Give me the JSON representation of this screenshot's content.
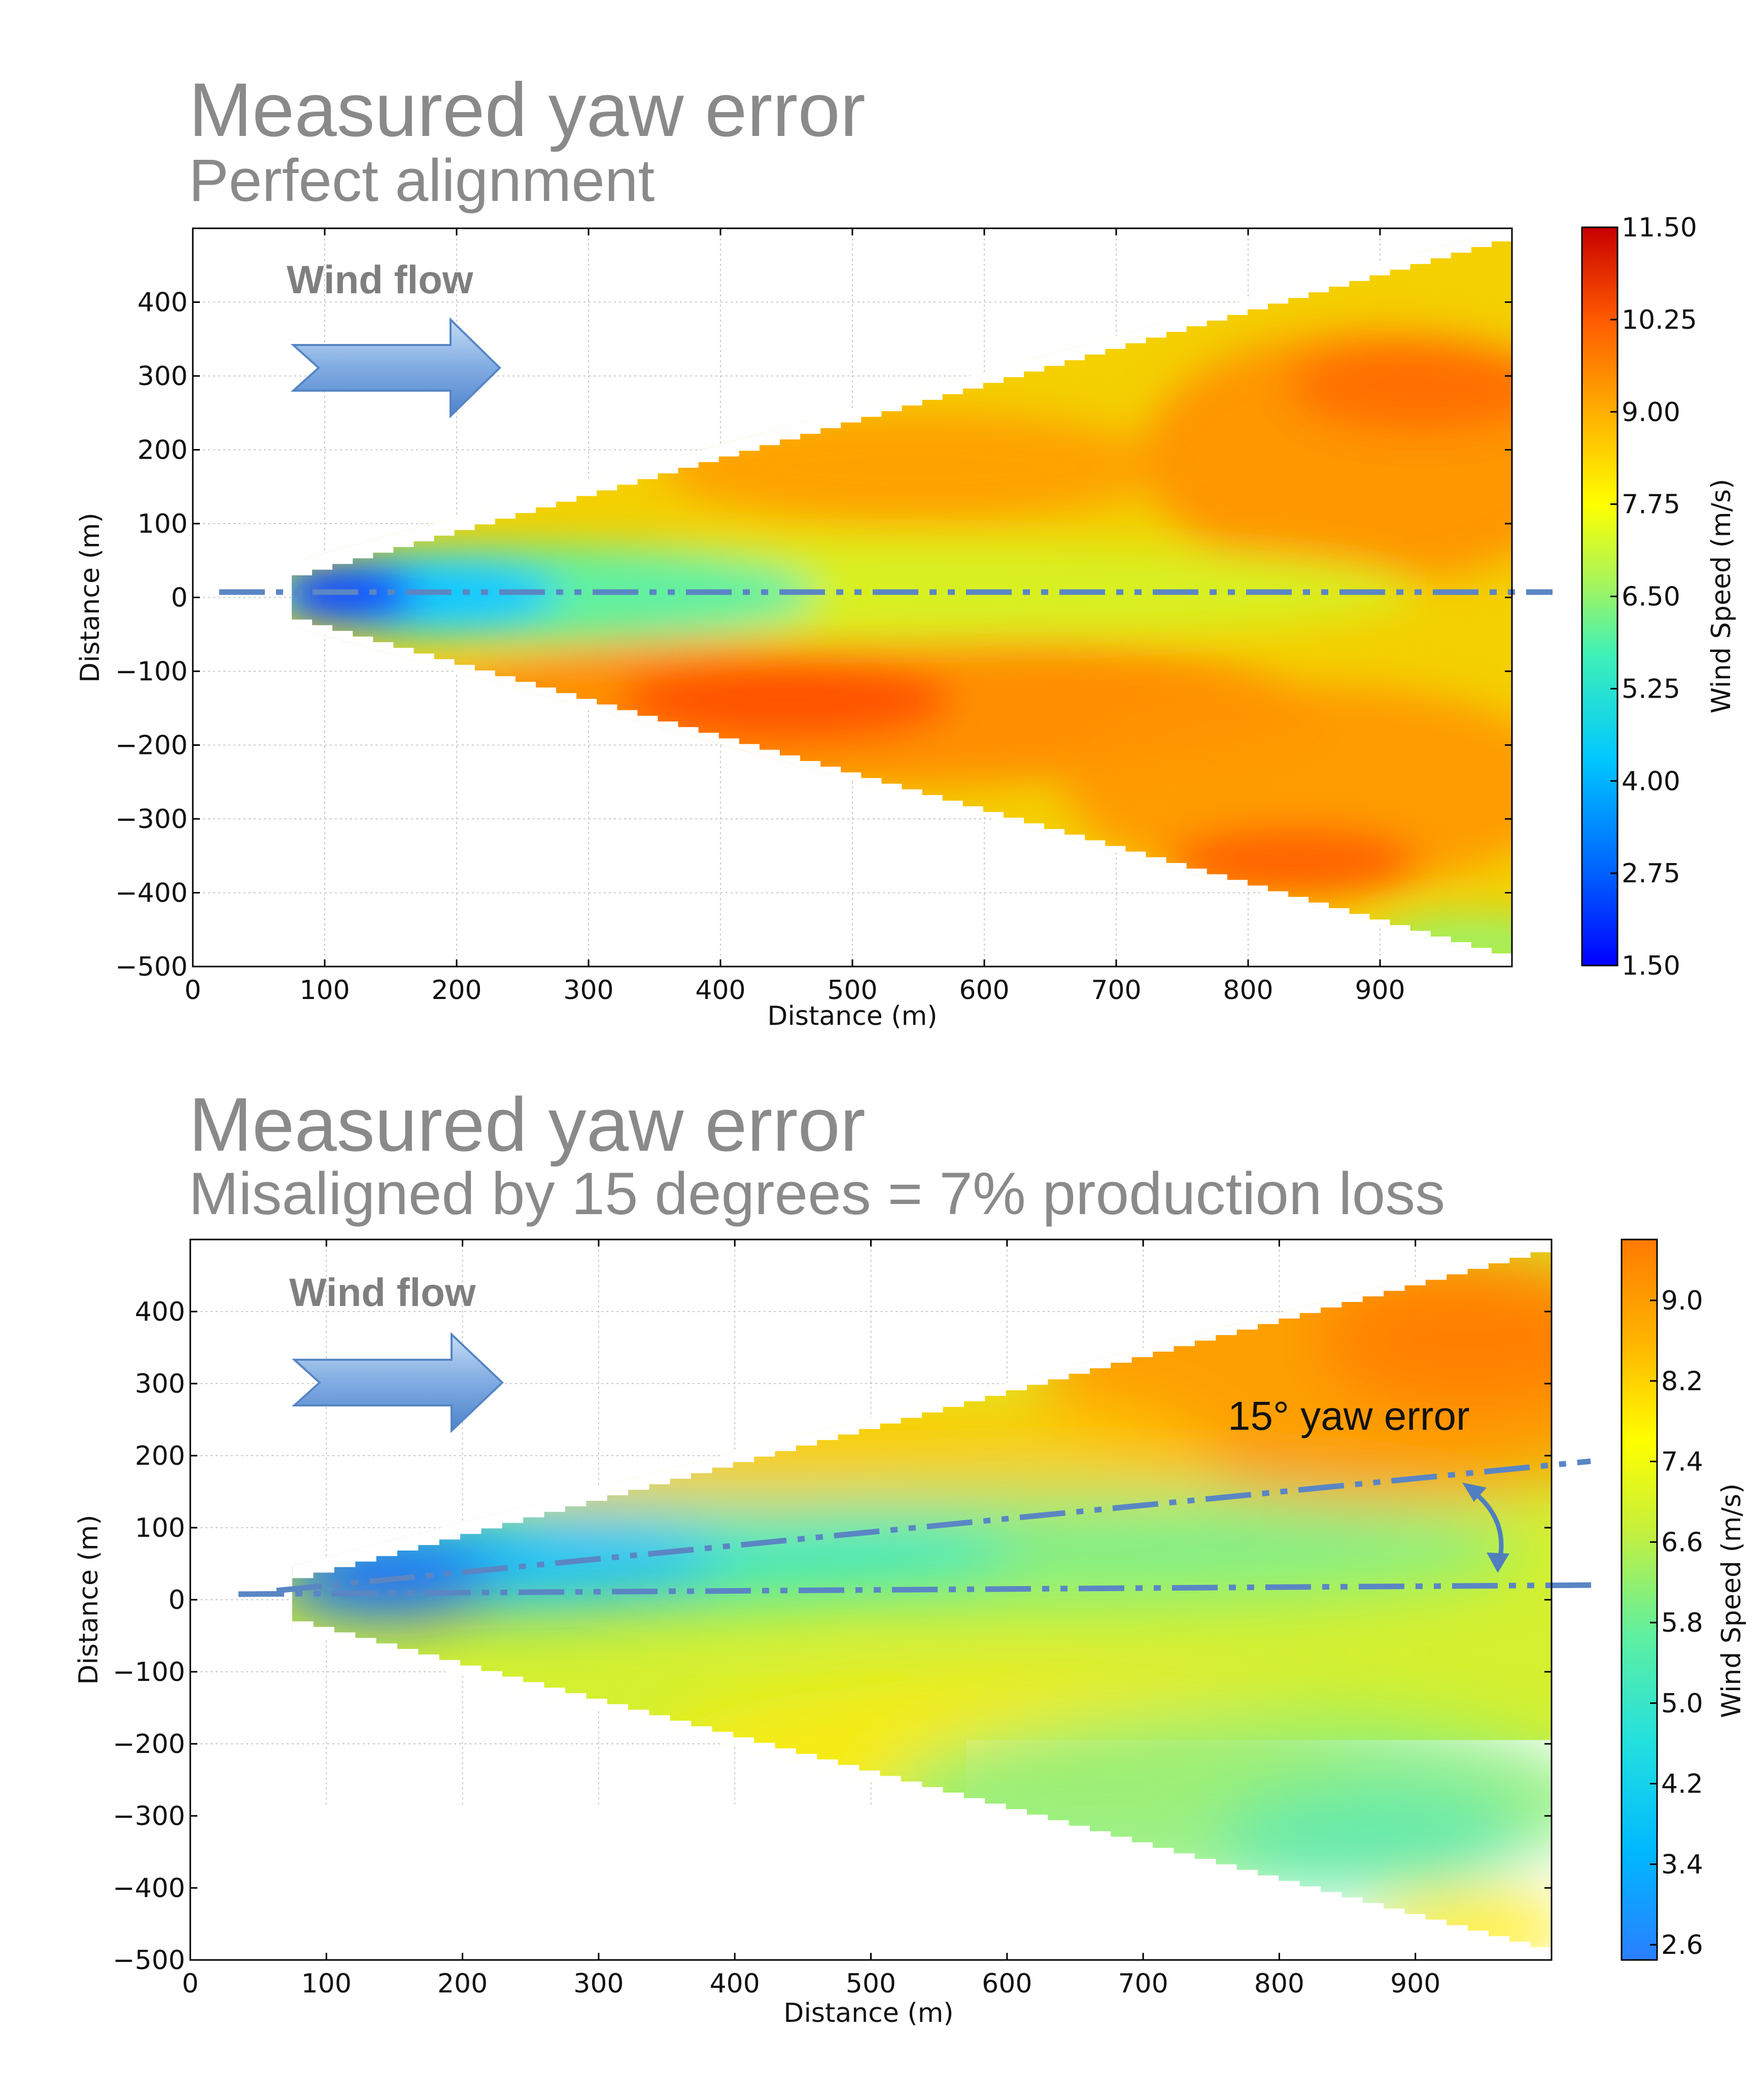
{
  "panels": [
    {
      "title": "Measured yaw error",
      "subtitle": "Perfect alignment",
      "flow_label": "Wind flow",
      "annotation": "",
      "colorbar": {
        "label": "Wind Speed (m/s)",
        "ticks": [
          "1.50",
          "2.75",
          "4.00",
          "5.25",
          "6.50",
          "7.75",
          "9.00",
          "10.25",
          "11.50"
        ]
      }
    },
    {
      "title": "Measured yaw error",
      "subtitle": "Misaligned by 15 degrees = 7% production loss",
      "flow_label": "Wind flow",
      "annotation": "15° yaw error",
      "colorbar": {
        "label": "Wind Speed (m/s)",
        "ticks": [
          "2.6",
          "3.4",
          "4.2",
          "5.0",
          "5.8",
          "6.6",
          "7.4",
          "8.2",
          "9.0"
        ]
      }
    }
  ],
  "chart_data": [
    {
      "type": "heatmap",
      "title": "Perfect alignment",
      "xlabel": "Distance (m)",
      "ylabel": "Distance (m)",
      "xlim": [
        0,
        1000
      ],
      "ylim": [
        -500,
        500
      ],
      "xticks": [
        0,
        100,
        200,
        300,
        400,
        500,
        600,
        700,
        800,
        900
      ],
      "yticks": [
        -500,
        -400,
        -300,
        -200,
        -100,
        0,
        100,
        200,
        300,
        400
      ],
      "grid": true,
      "colorbar_range": [
        1.5,
        11.5
      ],
      "colorbar_label": "Wind Speed (m/s)",
      "scan_cone": {
        "apex_x": 75,
        "end_x": 1000,
        "y_top_at_apex": 30,
        "y_top_at_end": 490,
        "y_bottom_at_end": -490
      },
      "wake_centerline_deg": 0,
      "values_description": "low wind speed (approx. 2-5 m/s) in the wake along y=0 near the rotor, recovering to ~7-9 m/s downstream; highest speeds (~9.5-10 m/s) at y≈-130, x≈400"
    },
    {
      "type": "heatmap",
      "title": "Misaligned by 15 degrees = 7% production loss",
      "xlabel": "Distance (m)",
      "ylabel": "Distance (m)",
      "xlim": [
        0,
        1000
      ],
      "ylim": [
        -500,
        500
      ],
      "xticks": [
        0,
        100,
        200,
        300,
        400,
        500,
        600,
        700,
        800,
        900
      ],
      "yticks": [
        -500,
        -400,
        -300,
        -200,
        -100,
        0,
        100,
        200,
        300,
        400
      ],
      "grid": true,
      "colorbar_range": [
        2.6,
        9.4
      ],
      "colorbar_label": "Wind Speed (m/s)",
      "scan_cone": {
        "apex_x": 75,
        "end_x": 1000,
        "y_top_at_apex": 30,
        "y_top_at_end": 490,
        "y_bottom_at_end": -490
      },
      "wake_centerline_deg": 15,
      "yaw_error_deg": 15
    }
  ]
}
